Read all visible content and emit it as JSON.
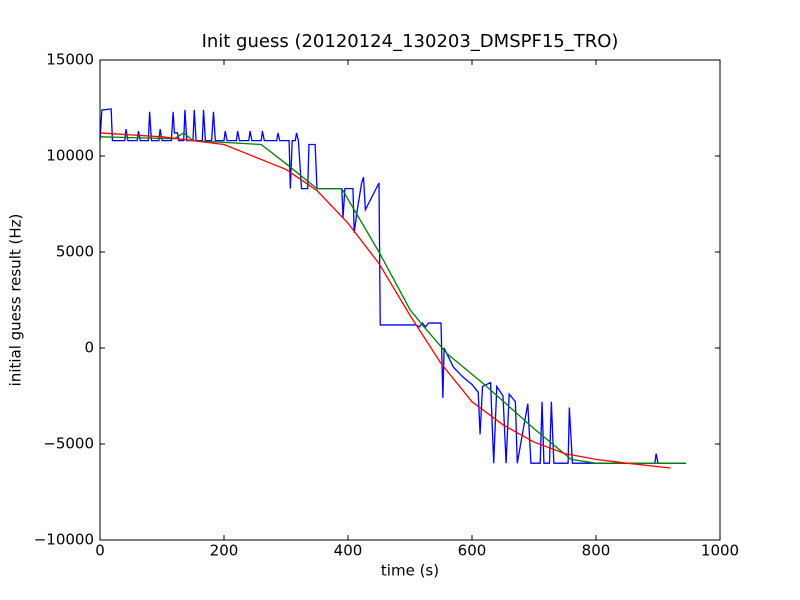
{
  "chart_data": {
    "type": "line",
    "title": "Init guess (20120124_130203_DMSPF15_TRO)",
    "xlabel": "time (s)",
    "ylabel": "initial guess result (Hz)",
    "xlim": [
      0,
      1000
    ],
    "ylim": [
      -10000,
      15000
    ],
    "xticks": [
      0,
      200,
      400,
      600,
      800,
      1000
    ],
    "yticks": [
      {
        "value": -10000,
        "label": "−10000"
      },
      {
        "value": -5000,
        "label": "−5000"
      },
      0,
      5000,
      10000,
      15000
    ],
    "series": [
      {
        "color": "#0000ff",
        "x": [
          0,
          3,
          18,
          20,
          40,
          42,
          45,
          60,
          62,
          65,
          78,
          80,
          83,
          95,
          97,
          100,
          115,
          118,
          120,
          125,
          127,
          135,
          137,
          140,
          150,
          152,
          155,
          165,
          167,
          170,
          180,
          183,
          186,
          200,
          202,
          205,
          220,
          222,
          225,
          240,
          242,
          245,
          260,
          262,
          265,
          285,
          287,
          290,
          305,
          307,
          310,
          315,
          317,
          320,
          325,
          335,
          337,
          347,
          350,
          390,
          392,
          395,
          408,
          410,
          415,
          422,
          425,
          428,
          450,
          452,
          510,
          515,
          520,
          525,
          530,
          550,
          553,
          555,
          570,
          585,
          600,
          610,
          613,
          617,
          630,
          635,
          640,
          650,
          655,
          660,
          670,
          673,
          690,
          695,
          710,
          713,
          716,
          725,
          728,
          732,
          755,
          757,
          762,
          895,
          897,
          900,
          945
        ],
        "values": [
          10800,
          12400,
          12450,
          10800,
          10800,
          11400,
          10800,
          10800,
          11300,
          10800,
          10800,
          12300,
          10800,
          10800,
          11400,
          10800,
          10800,
          12300,
          11200,
          11200,
          10800,
          10800,
          12400,
          10800,
          10800,
          12400,
          10800,
          10800,
          12400,
          10800,
          10800,
          12300,
          10800,
          10800,
          11300,
          10800,
          10800,
          11300,
          10800,
          10800,
          11300,
          10800,
          10800,
          11300,
          10800,
          10800,
          11200,
          10800,
          10800,
          8300,
          10800,
          10800,
          11200,
          10800,
          8300,
          8300,
          10600,
          10600,
          8300,
          8300,
          6800,
          8300,
          8300,
          6000,
          7200,
          8600,
          8900,
          7200,
          8600,
          1200,
          1200,
          1100,
          1300,
          1100,
          1300,
          1300,
          -2600,
          0,
          -1000,
          -1500,
          -1900,
          -2300,
          -4500,
          -2000,
          -1800,
          -6000,
          -2000,
          -2500,
          -6000,
          -2400,
          -2800,
          -6000,
          -2900,
          -6000,
          -6000,
          -2800,
          -6000,
          -6000,
          -2800,
          -6000,
          -6000,
          -3100,
          -6000,
          -6000,
          -5500,
          -6000,
          -6000
        ]
      },
      {
        "color": "#008000",
        "x": [
          0,
          120,
          135,
          150,
          260,
          300,
          350,
          390,
          450,
          500,
          520,
          560,
          620,
          700,
          760,
          800,
          945
        ],
        "values": [
          11000,
          10900,
          11200,
          10800,
          10600,
          9600,
          8300,
          8300,
          5000,
          2000,
          1200,
          -300,
          -1900,
          -4200,
          -5800,
          -6000,
          -6000
        ]
      },
      {
        "color": "#ff0000",
        "x": [
          0,
          100,
          200,
          300,
          350,
          400,
          450,
          500,
          550,
          600,
          650,
          700,
          750,
          800,
          850,
          920
        ],
        "values": [
          11200,
          11000,
          10600,
          9300,
          8200,
          6500,
          4400,
          1700,
          -800,
          -2800,
          -4000,
          -4900,
          -5500,
          -5800,
          -6000,
          -6250
        ]
      }
    ]
  }
}
